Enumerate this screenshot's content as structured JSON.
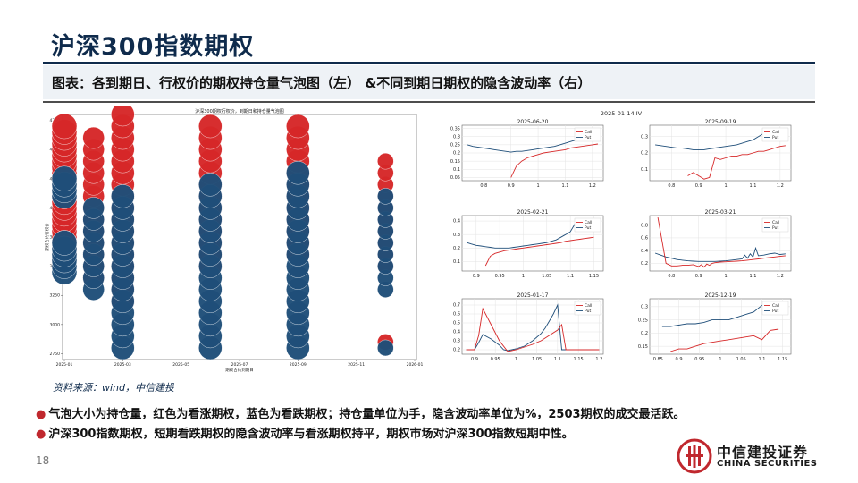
{
  "page": {
    "title": "沪深300指数期权",
    "subtitle": "图表：各到期日、行权价的期权持仓量气泡图（左） &不同到期日期权的隐含波动率（右）",
    "source": "资料来源：wind，中信建投",
    "bullets": [
      "气泡大小为持仓量，红色为看涨期权，蓝色为看跌期权；持仓量单位为手，隐含波动率单位为%，2503期权的成交最活跃。",
      "沪深300指数期权，短期看跌期权的隐含波动率与看涨期权持平，期权市场对沪深300指数短期中性。"
    ],
    "page_number": "18",
    "logo": {
      "cn": "中信建投证券",
      "en": "CHINA SECURITIES"
    }
  },
  "colors": {
    "call": "#d62728",
    "put": "#1f4e79",
    "title": "#0f2b4c",
    "bullet_dot": "#c0282e"
  },
  "chart_data": [
    {
      "type": "scatter",
      "title": "沪深300期权行权价，到期日和持仓量气泡图",
      "xlabel": "期权合约到期日",
      "ylabel": "期权合约行权价",
      "x_ticks": [
        "2025-01",
        "2025-03",
        "2025-05",
        "2025-07",
        "2025-09",
        "2025-11",
        "2026-01"
      ],
      "y_ticks": [
        2750,
        3000,
        3250,
        3500,
        3750,
        4000,
        4250,
        4500,
        4750
      ],
      "ylim": [
        2700,
        4800
      ],
      "series": [
        {
          "name": "Call",
          "expiry": "2025-01",
          "strikes": [
            3750,
            3800,
            3850,
            3900,
            3950,
            4000,
            4050,
            4100,
            4150,
            4200,
            4250,
            4300,
            4350,
            4400,
            4450,
            4500,
            4550,
            4600,
            4650,
            4700,
            3700,
            3650,
            3600,
            3550,
            3500
          ]
        },
        {
          "name": "Put",
          "expiry": "2025-01",
          "strikes": [
            3450,
            3500,
            3550,
            3600,
            3650,
            3700,
            4100,
            4150,
            4200,
            4250
          ]
        },
        {
          "name": "Call",
          "expiry": "2025-02",
          "strikes": [
            4000,
            4100,
            4200,
            4300,
            4400,
            4500,
            4600,
            3900,
            3800,
            3700,
            3600,
            3500,
            3400
          ]
        },
        {
          "name": "Put",
          "expiry": "2025-02",
          "strikes": [
            3300,
            3400,
            3500,
            3600,
            3700,
            3800,
            3900,
            4000
          ]
        },
        {
          "name": "Call",
          "expiry": "2025-03",
          "strikes": [
            3900,
            4000,
            4100,
            4200,
            4300,
            4400,
            4500,
            4600,
            4700,
            4800,
            3800,
            3700,
            3600,
            3500,
            3400,
            3300,
            3200
          ]
        },
        {
          "name": "Put",
          "expiry": "2025-03",
          "strikes": [
            2800,
            2900,
            3000,
            3100,
            3200,
            3300,
            3400,
            3500,
            3600,
            3700,
            3800,
            3900,
            4000,
            4100
          ]
        },
        {
          "name": "Call",
          "expiry": "2025-06",
          "strikes": [
            4000,
            4100,
            4200,
            4300,
            4400,
            4500,
            4600,
            4700,
            3900,
            3800,
            3700,
            3600,
            3500
          ]
        },
        {
          "name": "Put",
          "expiry": "2025-06",
          "strikes": [
            2800,
            2900,
            3000,
            3100,
            3200,
            3300,
            3400,
            3500,
            3600,
            3700,
            3800,
            3900,
            4000,
            4100,
            4200
          ]
        },
        {
          "name": "Call",
          "expiry": "2025-09",
          "strikes": [
            4000,
            4100,
            4200,
            4300,
            4400,
            4500,
            4600,
            4700,
            3900,
            3800,
            3700,
            3600
          ]
        },
        {
          "name": "Put",
          "expiry": "2025-09",
          "strikes": [
            2800,
            2900,
            3000,
            3100,
            3200,
            3300,
            3400,
            3500,
            3600,
            3700,
            3800,
            3900,
            4000,
            4100,
            4200,
            4300
          ]
        },
        {
          "name": "Call",
          "expiry": "2025-12",
          "strikes": [
            3500,
            3600,
            3700,
            3800,
            3900,
            4000,
            4100,
            4200,
            4300,
            4400,
            2850
          ]
        },
        {
          "name": "Put",
          "expiry": "2025-12",
          "strikes": [
            3300,
            3400,
            3500,
            3600,
            3700,
            3800,
            3900,
            4000,
            4100,
            2800
          ]
        }
      ]
    },
    {
      "type": "line",
      "title": "2025-01-14 IV",
      "subplots": [
        {
          "title": "2025-06-20",
          "legend": [
            "Call",
            "Put"
          ],
          "x_ticks": [
            0.8,
            0.9,
            1.0,
            1.1,
            1.2
          ],
          "y_ticks": [
            0.05,
            0.1,
            0.15,
            0.2,
            0.25,
            0.3,
            0.35
          ],
          "xlim": [
            0.72,
            1.24
          ],
          "ylim": [
            0.03,
            0.37
          ],
          "call": {
            "x": [
              0.9,
              0.92,
              0.94,
              0.96,
              0.98,
              1.0,
              1.02,
              1.04,
              1.06,
              1.08,
              1.1,
              1.12,
              1.14,
              1.16,
              1.18,
              1.2,
              1.22
            ],
            "y": [
              0.05,
              0.12,
              0.15,
              0.17,
              0.18,
              0.19,
              0.2,
              0.205,
              0.21,
              0.215,
              0.22,
              0.23,
              0.235,
              0.24,
              0.245,
              0.25,
              0.255
            ]
          },
          "put": {
            "x": [
              0.74,
              0.76,
              0.78,
              0.8,
              0.82,
              0.84,
              0.86,
              0.88,
              0.9,
              0.92,
              0.94,
              0.96,
              0.98,
              1.0,
              1.02,
              1.04,
              1.06,
              1.08,
              1.1,
              1.12,
              1.14,
              1.16
            ],
            "y": [
              0.25,
              0.24,
              0.235,
              0.23,
              0.225,
              0.22,
              0.215,
              0.21,
              0.205,
              0.21,
              0.21,
              0.215,
              0.22,
              0.225,
              0.23,
              0.235,
              0.24,
              0.25,
              0.26,
              0.27,
              0.28,
              0.285
            ]
          }
        },
        {
          "title": "2025-09-19",
          "legend": [
            "Call",
            "Put"
          ],
          "x_ticks": [
            0.8,
            0.9,
            1.0,
            1.1,
            1.2
          ],
          "y_ticks": [
            0.1,
            0.2,
            0.3
          ],
          "xlim": [
            0.72,
            1.24
          ],
          "ylim": [
            0.03,
            0.37
          ],
          "call": {
            "x": [
              0.86,
              0.88,
              0.9,
              0.92,
              0.94,
              0.96,
              0.98,
              1.0,
              1.02,
              1.04,
              1.06,
              1.08,
              1.1,
              1.12,
              1.14,
              1.16,
              1.18,
              1.2,
              1.22
            ],
            "y": [
              0.06,
              0.08,
              0.06,
              0.04,
              0.05,
              0.17,
              0.16,
              0.17,
              0.18,
              0.18,
              0.19,
              0.19,
              0.2,
              0.21,
              0.21,
              0.22,
              0.23,
              0.24,
              0.245
            ]
          },
          "put": {
            "x": [
              0.74,
              0.76,
              0.78,
              0.8,
              0.82,
              0.84,
              0.86,
              0.88,
              0.9,
              0.92,
              0.94,
              0.96,
              0.98,
              1.0,
              1.02,
              1.04,
              1.06,
              1.08,
              1.1,
              1.12,
              1.14,
              1.16
            ],
            "y": [
              0.25,
              0.245,
              0.24,
              0.235,
              0.23,
              0.23,
              0.225,
              0.22,
              0.22,
              0.22,
              0.225,
              0.23,
              0.235,
              0.24,
              0.245,
              0.25,
              0.26,
              0.27,
              0.28,
              0.3,
              0.32,
              0.35
            ]
          }
        },
        {
          "title": "2025-02-21",
          "legend": [
            "Call",
            "Put"
          ],
          "x_ticks": [
            0.9,
            0.95,
            1.0,
            1.05,
            1.1,
            1.15
          ],
          "y_ticks": [
            0.1,
            0.2,
            0.3,
            0.4
          ],
          "xlim": [
            0.87,
            1.17
          ],
          "ylim": [
            0.03,
            0.44
          ],
          "call": {
            "x": [
              0.92,
              0.93,
              0.94,
              0.95,
              0.96,
              0.97,
              0.98,
              0.99,
              1.0,
              1.01,
              1.02,
              1.03,
              1.04,
              1.05,
              1.06,
              1.07,
              1.08,
              1.09,
              1.1,
              1.11,
              1.12,
              1.13,
              1.14,
              1.15
            ],
            "y": [
              0.07,
              0.14,
              0.16,
              0.17,
              0.18,
              0.185,
              0.19,
              0.195,
              0.2,
              0.205,
              0.21,
              0.215,
              0.22,
              0.225,
              0.23,
              0.235,
              0.24,
              0.25,
              0.255,
              0.26,
              0.265,
              0.27,
              0.275,
              0.28
            ]
          },
          "put": {
            "x": [
              0.88,
              0.89,
              0.9,
              0.91,
              0.92,
              0.93,
              0.94,
              0.95,
              0.96,
              0.97,
              0.98,
              0.99,
              1.0,
              1.01,
              1.02,
              1.03,
              1.04,
              1.05,
              1.06,
              1.07,
              1.08,
              1.09,
              1.1,
              1.11
            ],
            "y": [
              0.24,
              0.23,
              0.22,
              0.215,
              0.21,
              0.205,
              0.2,
              0.2,
              0.2,
              0.2,
              0.205,
              0.21,
              0.215,
              0.22,
              0.225,
              0.23,
              0.235,
              0.24,
              0.25,
              0.26,
              0.28,
              0.3,
              0.32,
              0.38
            ]
          }
        },
        {
          "title": "2025-03-21",
          "legend": [
            "Call",
            "Put"
          ],
          "x_ticks": [
            0.8,
            0.9,
            1.0,
            1.1,
            1.2
          ],
          "y_ticks": [
            0.2,
            0.4,
            0.6,
            0.8
          ],
          "xlim": [
            0.72,
            1.24
          ],
          "ylim": [
            0.08,
            0.95
          ],
          "call": {
            "x": [
              0.75,
              0.78,
              0.8,
              0.82,
              0.84,
              0.86,
              0.88,
              0.9,
              0.91,
              0.92,
              0.93,
              0.94,
              0.95,
              0.96,
              0.98,
              1.0,
              1.02,
              1.04,
              1.06,
              1.08,
              1.1,
              1.12,
              1.14,
              1.16,
              1.18,
              1.2,
              1.22
            ],
            "y": [
              0.92,
              0.2,
              0.16,
              0.16,
              0.17,
              0.17,
              0.18,
              0.15,
              0.18,
              0.14,
              0.19,
              0.17,
              0.2,
              0.21,
              0.22,
              0.225,
              0.23,
              0.235,
              0.24,
              0.25,
              0.26,
              0.27,
              0.28,
              0.29,
              0.3,
              0.31,
              0.32
            ]
          },
          "put": {
            "x": [
              0.74,
              0.76,
              0.78,
              0.8,
              0.82,
              0.84,
              0.86,
              0.88,
              0.9,
              0.92,
              0.94,
              0.96,
              0.98,
              1.0,
              1.02,
              1.04,
              1.06,
              1.07,
              1.08,
              1.09,
              1.1,
              1.11,
              1.12,
              1.14,
              1.16,
              1.18,
              1.2,
              1.22
            ],
            "y": [
              0.36,
              0.33,
              0.3,
              0.28,
              0.26,
              0.25,
              0.24,
              0.235,
              0.23,
              0.23,
              0.23,
              0.23,
              0.235,
              0.24,
              0.25,
              0.26,
              0.27,
              0.33,
              0.28,
              0.35,
              0.3,
              0.44,
              0.32,
              0.33,
              0.35,
              0.36,
              0.34,
              0.35
            ]
          }
        },
        {
          "title": "2025-01-17",
          "legend": [
            "Call",
            "Put"
          ],
          "x_ticks": [
            0.9,
            0.95,
            1.0,
            1.05,
            1.1,
            1.15,
            1.2
          ],
          "y_ticks": [
            0.2,
            0.3,
            0.4,
            0.5,
            0.6,
            0.7
          ],
          "xlim": [
            0.87,
            1.21
          ],
          "ylim": [
            0.15,
            0.77
          ],
          "call": {
            "x": [
              0.88,
              0.9,
              0.91,
              0.92,
              0.94,
              0.96,
              0.98,
              1.0,
              1.02,
              1.04,
              1.06,
              1.08,
              1.1,
              1.11,
              1.12,
              1.14,
              1.16,
              1.18,
              1.2
            ],
            "y": [
              0.2,
              0.2,
              0.36,
              0.66,
              0.48,
              0.3,
              0.18,
              0.2,
              0.23,
              0.26,
              0.3,
              0.36,
              0.42,
              0.48,
              0.2,
              0.2,
              0.2,
              0.2,
              0.2
            ]
          },
          "put": {
            "x": [
              0.88,
              0.9,
              0.91,
              0.92,
              0.94,
              0.96,
              0.97,
              0.98,
              1.0,
              1.02,
              1.04,
              1.06,
              1.07,
              1.08,
              1.09,
              1.1,
              1.11,
              1.12,
              1.14,
              1.16,
              1.18,
              1.2
            ],
            "y": [
              0.2,
              0.2,
              0.28,
              0.37,
              0.32,
              0.25,
              0.2,
              0.19,
              0.21,
              0.24,
              0.3,
              0.38,
              0.44,
              0.52,
              0.6,
              0.7,
              0.2,
              0.2,
              0.2,
              0.2,
              0.2,
              0.2
            ]
          }
        },
        {
          "title": "2025-12-19",
          "legend": [
            "Call",
            "Put"
          ],
          "x_ticks": [
            0.85,
            0.9,
            0.95,
            1.0,
            1.05,
            1.1,
            1.15
          ],
          "y_ticks": [
            0.15,
            0.2,
            0.25,
            0.3
          ],
          "xlim": [
            0.83,
            1.17
          ],
          "ylim": [
            0.12,
            0.33
          ],
          "call": {
            "x": [
              0.88,
              0.9,
              0.92,
              0.94,
              0.96,
              0.98,
              1.0,
              1.02,
              1.04,
              1.06,
              1.08,
              1.1,
              1.12,
              1.14
            ],
            "y": [
              0.13,
              0.14,
              0.14,
              0.15,
              0.16,
              0.165,
              0.17,
              0.175,
              0.18,
              0.185,
              0.19,
              0.175,
              0.21,
              0.215
            ]
          },
          "put": {
            "x": [
              0.86,
              0.88,
              0.9,
              0.92,
              0.94,
              0.96,
              0.98,
              1.0,
              1.02,
              1.04,
              1.06,
              1.08,
              1.1,
              1.12,
              1.14
            ],
            "y": [
              0.225,
              0.225,
              0.23,
              0.235,
              0.235,
              0.24,
              0.25,
              0.25,
              0.25,
              0.26,
              0.27,
              0.28,
              0.305,
              0.31,
              0.31
            ]
          }
        }
      ]
    }
  ]
}
